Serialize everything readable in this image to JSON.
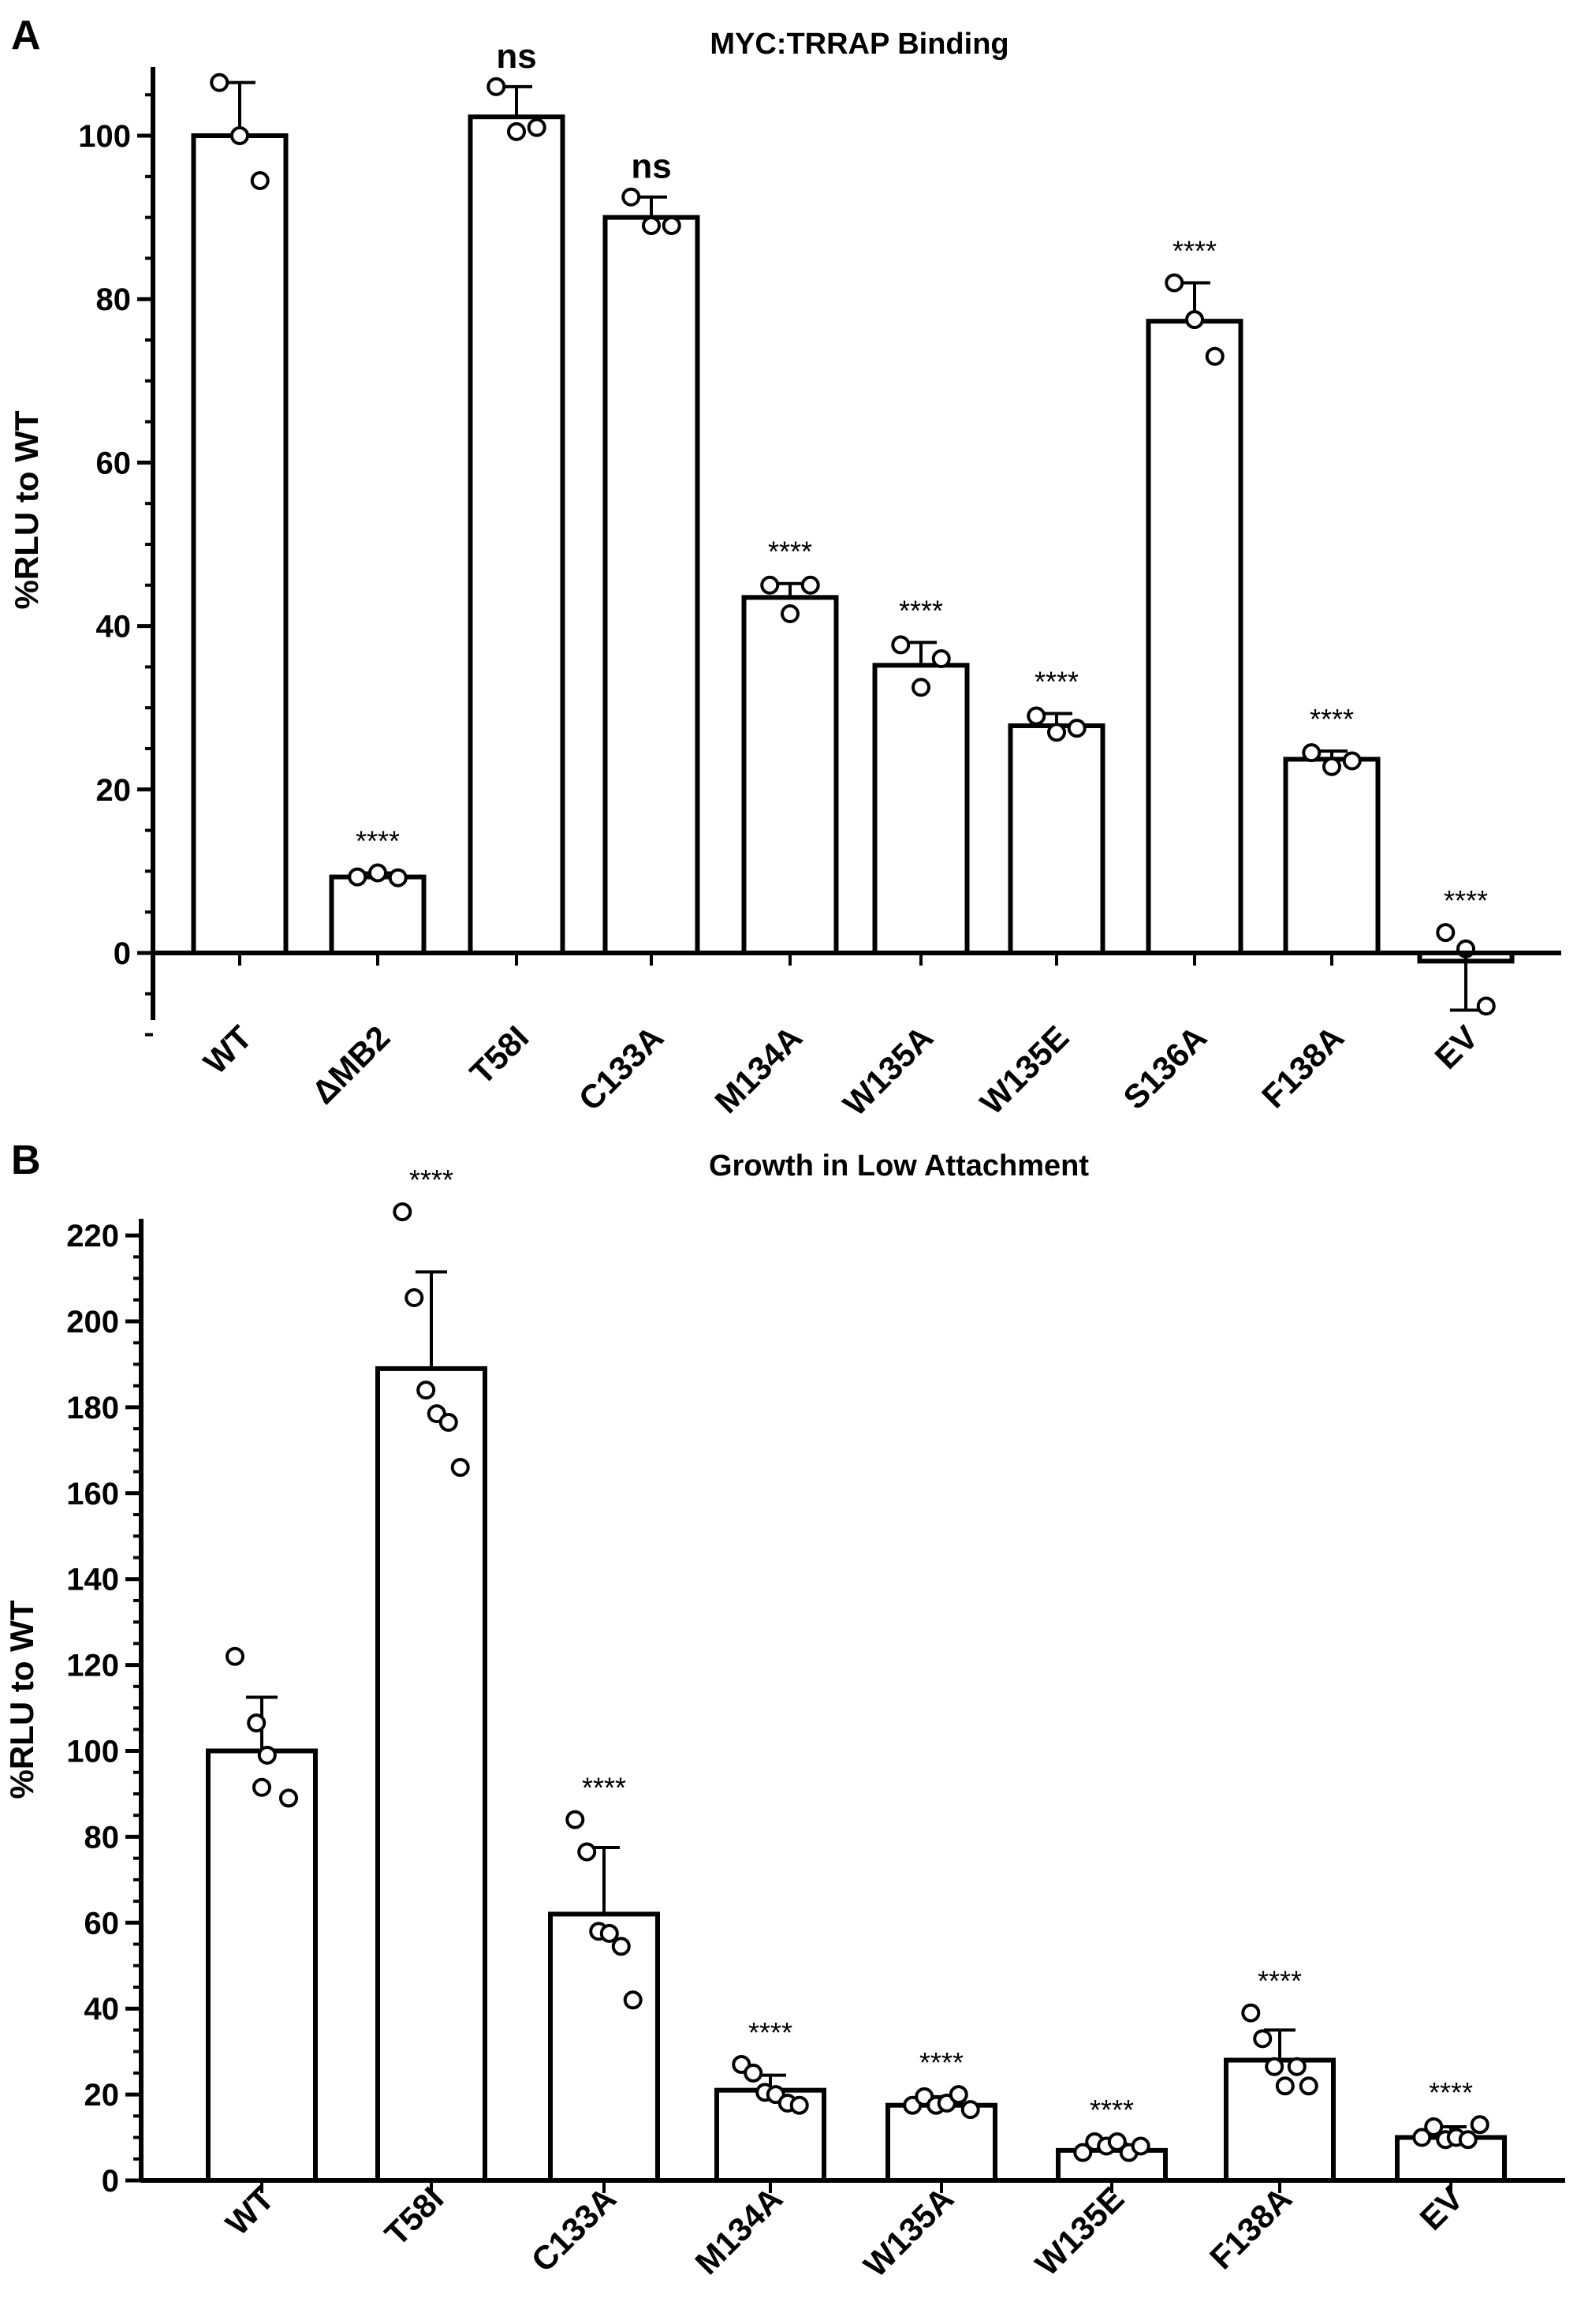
{
  "chart_data": [
    {
      "type": "bar",
      "panel_label": "A",
      "title": "MYC:TRRAP Binding",
      "xlabel": "",
      "ylabel": "%RLU to WT",
      "ylim": [
        -12,
        107
      ],
      "yticks": [
        0,
        20,
        40,
        60,
        80,
        100
      ],
      "ytick_labels": [
        "0",
        "20",
        "40",
        "60",
        "80",
        "100"
      ],
      "categories": [
        "WT",
        "ΔMB2",
        "T58I",
        "C133A",
        "M134A",
        "W135A",
        "W135E",
        "S136A",
        "F138A",
        "EV"
      ],
      "values": [
        100,
        9.3,
        102.3,
        90,
        43.5,
        35.2,
        27.8,
        77.3,
        23.7,
        -1
      ],
      "error_bar_ends": [
        106.5,
        9.8,
        106,
        92.5,
        45.2,
        38,
        29.3,
        82,
        24.7,
        -7
      ],
      "points": [
        [
          106.5,
          100,
          94.5
        ],
        [
          9.3,
          9.8,
          9.2
        ],
        [
          106,
          100.5,
          101
        ],
        [
          92.5,
          89,
          89
        ],
        [
          45,
          41.5,
          45
        ],
        [
          37.7,
          32.5,
          36
        ],
        [
          29,
          27,
          27.5
        ],
        [
          82,
          77.5,
          73
        ],
        [
          24.5,
          22.8,
          23.5
        ],
        [
          2.5,
          0.5,
          -6.5
        ]
      ],
      "significance": [
        "",
        "****",
        "ns",
        "ns",
        "****",
        "****",
        "****",
        "****",
        "****",
        "****"
      ],
      "grid": false
    },
    {
      "type": "bar",
      "panel_label": "B",
      "title": "Growth in Low Attachment",
      "xlabel": "",
      "ylabel": "%RLU to WT",
      "ylim": [
        0,
        226
      ],
      "yticks": [
        0,
        20,
        40,
        60,
        80,
        100,
        120,
        140,
        160,
        180,
        200,
        220
      ],
      "ytick_labels": [
        "0",
        "20",
        "40",
        "60",
        "80",
        "100",
        "120",
        "140",
        "160",
        "180",
        "200",
        "220"
      ],
      "categories": [
        "WT",
        "T58I",
        "C133A",
        "M134A",
        "W135A",
        "W135E",
        "F138A",
        "EV"
      ],
      "values": [
        100,
        189,
        62,
        21,
        17.5,
        7,
        28,
        10
      ],
      "error_bar_ends": [
        112.5,
        211.5,
        77.5,
        24.5,
        19.5,
        8.5,
        35,
        12.5
      ],
      "points": [
        [
          122,
          106.5,
          99,
          89,
          91.5
        ],
        [
          225.5,
          205.5,
          184,
          178.5,
          176.5,
          166
        ],
        [
          84,
          76.5,
          58,
          57.5,
          54.5,
          42
        ],
        [
          27,
          25,
          20.5,
          20,
          18,
          17.5
        ],
        [
          17.5,
          19.5,
          17.5,
          18,
          20,
          16.5
        ],
        [
          6.5,
          9,
          8,
          9,
          6.5,
          8
        ],
        [
          39,
          33,
          26.5,
          22,
          26.5,
          22
        ],
        [
          10,
          12.5,
          9.5,
          10,
          9.5,
          13
        ]
      ],
      "significance": [
        "",
        "****",
        "****",
        "****",
        "****",
        "****",
        "****",
        "****"
      ],
      "grid": false
    }
  ]
}
